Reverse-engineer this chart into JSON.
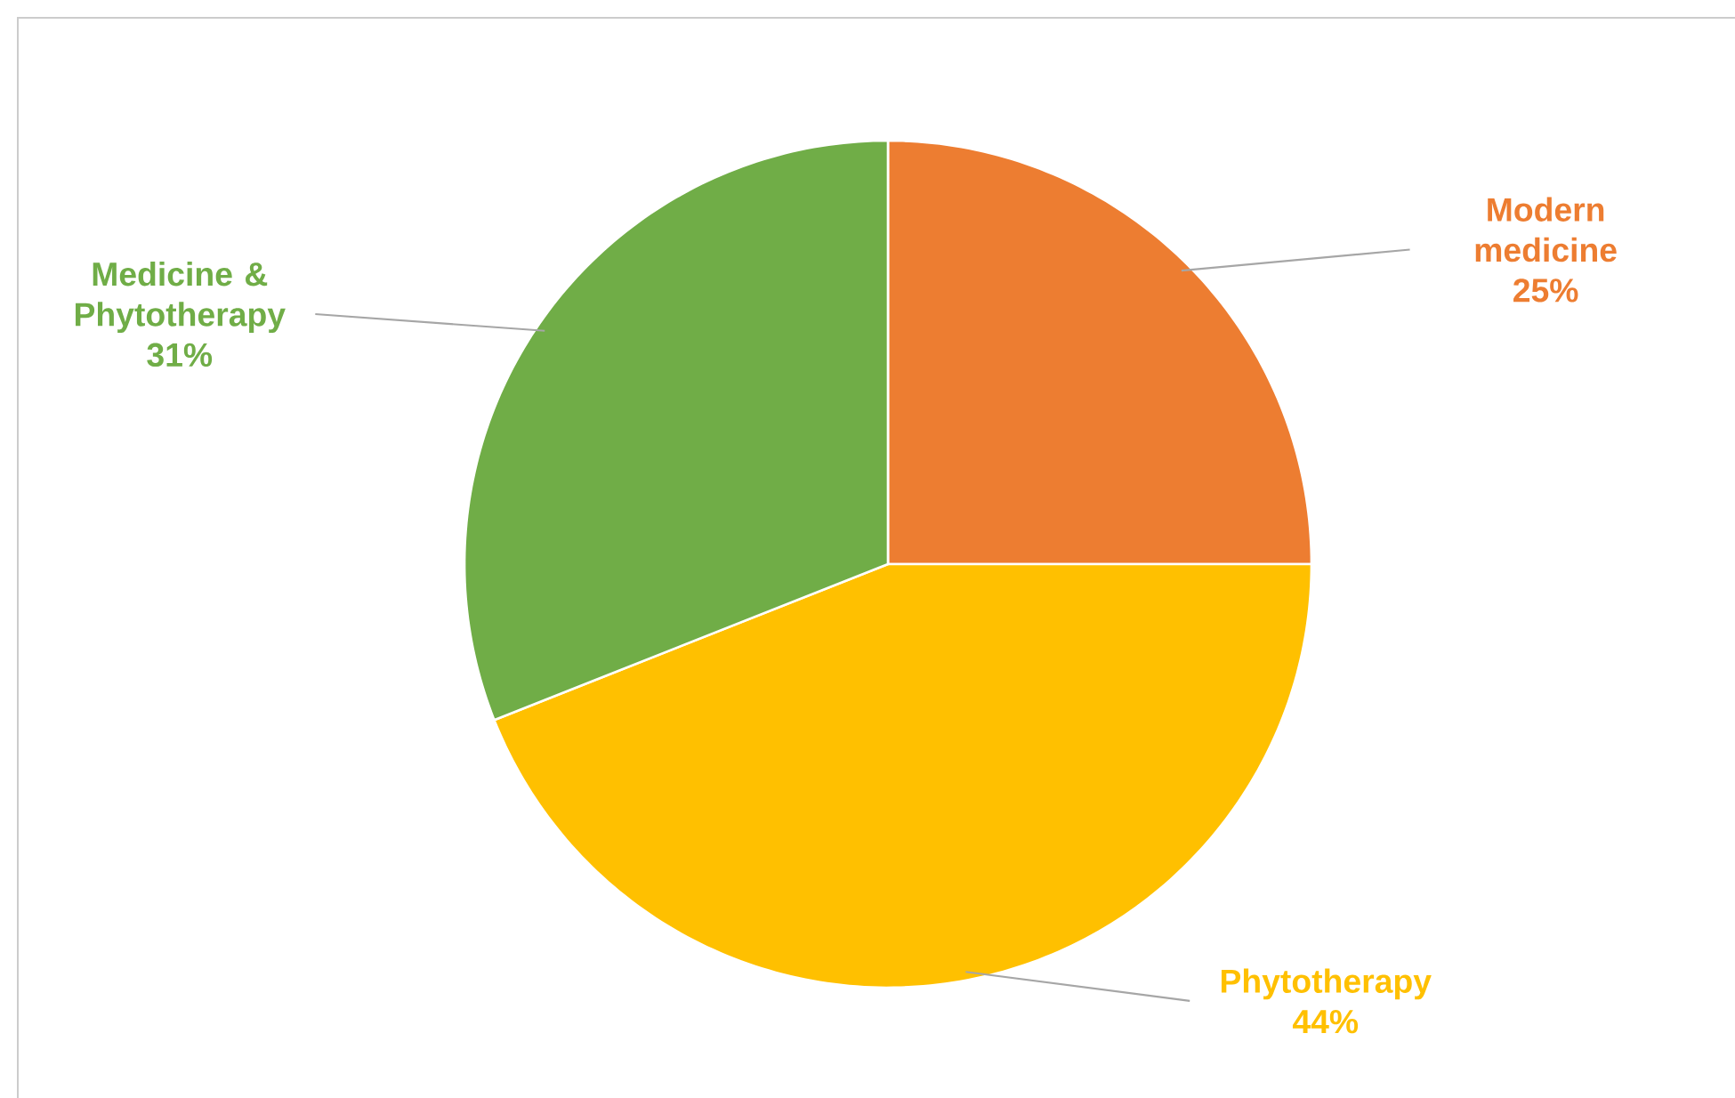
{
  "chart_data": {
    "type": "pie",
    "categories": [
      "Modern medicine",
      "Phytotherapy",
      "Medicine & Phytotherapy"
    ],
    "values": [
      25,
      44,
      31
    ],
    "value_labels": [
      "25%",
      "44%",
      "31%"
    ],
    "colors": [
      "#ed7d31",
      "#ffc000",
      "#70ad47"
    ]
  }
}
